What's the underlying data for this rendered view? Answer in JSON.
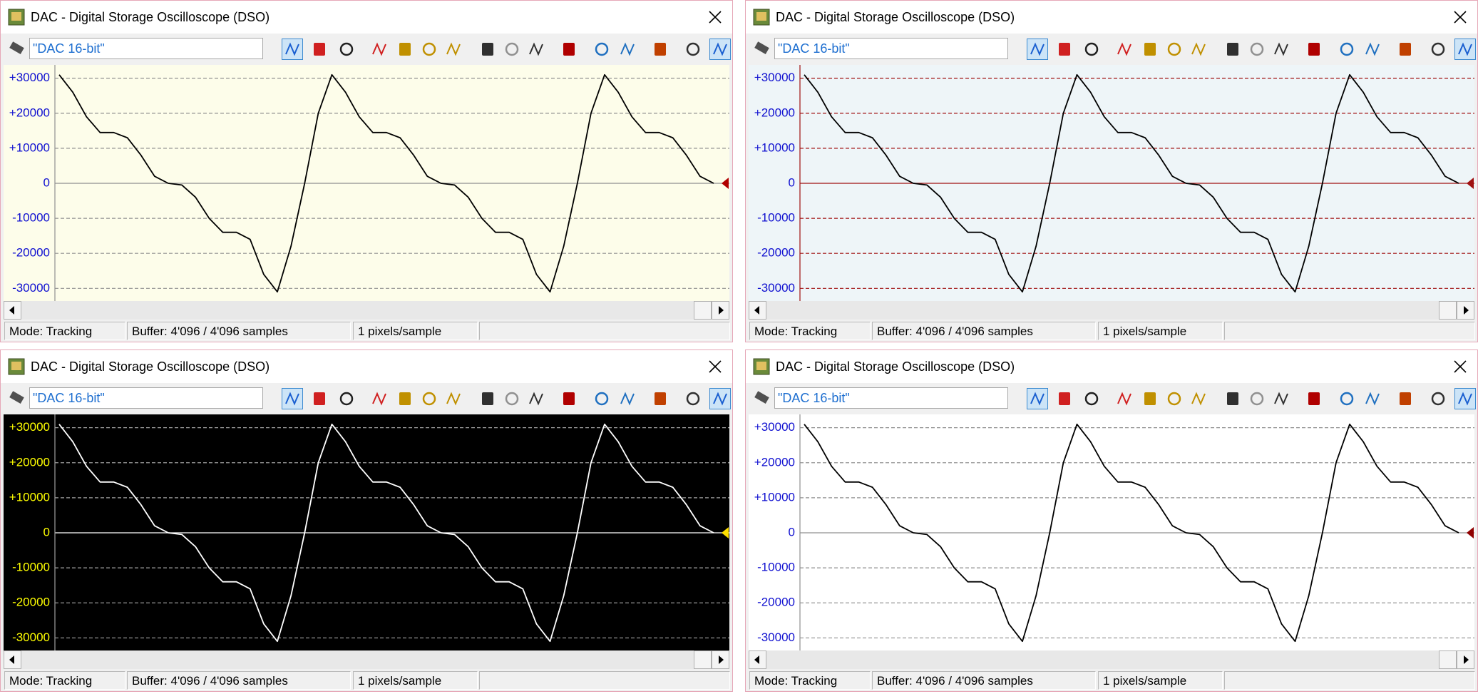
{
  "windows": [
    {
      "title": "DAC - Digital Storage Oscilloscope (DSO)",
      "input": "\"DAC 16-bit\"",
      "status": [
        "Mode: Tracking",
        "Buffer:  4'096 / 4'096 samples",
        "1 pixels/sample"
      ]
    },
    {
      "title": "DAC - Digital Storage Oscilloscope (DSO)",
      "input": "\"DAC 16-bit\"",
      "status": [
        "Mode: Tracking",
        "Buffer:  4'096 / 4'096 samples",
        "1 pixels/sample"
      ]
    },
    {
      "title": "DAC - Digital Storage Oscilloscope (DSO)",
      "input": "\"DAC 16-bit\"",
      "status": [
        "Mode: Tracking",
        "Buffer:  4'096 / 4'096 samples",
        "1 pixels/sample"
      ]
    },
    {
      "title": "DAC - Digital Storage Oscilloscope (DSO)",
      "input": "\"DAC 16-bit\"",
      "status": [
        "Mode: Tracking",
        "Buffer:  4'096 / 4'096 samples",
        "1 pixels/sample"
      ]
    }
  ],
  "chart_data": [
    {
      "type": "line",
      "background": "#fdfdea",
      "color": "#000000",
      "grid": true,
      "grid_color": "#909090",
      "zero_line_color": "#909090",
      "label_color": "#1010d0",
      "marker_color": "#b00000",
      "ylim": [
        -33600,
        33800
      ],
      "yticks": [
        {
          "value": 30000,
          "label": "+30000"
        },
        {
          "value": 20000,
          "label": "+20000"
        },
        {
          "value": 10000,
          "label": "+10000"
        },
        0,
        -10000,
        -20000,
        -30000
      ],
      "values": [
        31000,
        26000,
        19000,
        14500,
        14500,
        13000,
        8000,
        2000,
        0,
        -500,
        -4000,
        -10000,
        -14000,
        -14000,
        -16000,
        -26000,
        -31000,
        -18000,
        0,
        20000,
        31000,
        26000,
        19000,
        14500,
        14500,
        13000,
        8000,
        2000,
        0,
        -500,
        -4000,
        -10000,
        -14000,
        -14000,
        -16000,
        -26000,
        -31000,
        -18000,
        0,
        20000,
        31000,
        26000,
        19000,
        14500,
        14500,
        13000,
        8000,
        2000,
        0
      ]
    },
    {
      "type": "line",
      "background": "#eef5f8",
      "color": "#000000",
      "grid": true,
      "grid_color": "#a01010",
      "zero_line_color": "#a01010",
      "label_color": "#1010d0",
      "marker_color": "#a01010",
      "ylim": [
        -33600,
        33800
      ],
      "yticks": [
        {
          "value": 30000,
          "label": "+30000"
        },
        {
          "value": 20000,
          "label": "+20000"
        },
        {
          "value": 10000,
          "label": "+10000"
        },
        0,
        -10000,
        -20000,
        -30000
      ],
      "values": [
        31000,
        26000,
        19000,
        14500,
        14500,
        13000,
        8000,
        2000,
        0,
        -500,
        -4000,
        -10000,
        -14000,
        -14000,
        -16000,
        -26000,
        -31000,
        -18000,
        0,
        20000,
        31000,
        26000,
        19000,
        14500,
        14500,
        13000,
        8000,
        2000,
        0,
        -500,
        -4000,
        -10000,
        -14000,
        -14000,
        -16000,
        -26000,
        -31000,
        -18000,
        0,
        20000,
        31000,
        26000,
        19000,
        14500,
        14500,
        13000,
        8000,
        2000,
        0
      ]
    },
    {
      "type": "line",
      "background": "#000000",
      "color": "#ffffff",
      "grid": true,
      "grid_color": "#a0a0a0",
      "zero_line_color": "#ffffff",
      "label_color": "#ffff00",
      "marker_color": "#ffe000",
      "ylim": [
        -33600,
        33800
      ],
      "yticks": [
        {
          "value": 30000,
          "label": "+30000"
        },
        {
          "value": 20000,
          "label": "+20000"
        },
        {
          "value": 10000,
          "label": "+10000"
        },
        0,
        -10000,
        -20000,
        -30000
      ],
      "values": [
        31000,
        26000,
        19000,
        14500,
        14500,
        13000,
        8000,
        2000,
        0,
        -500,
        -4000,
        -10000,
        -14000,
        -14000,
        -16000,
        -26000,
        -31000,
        -18000,
        0,
        20000,
        31000,
        26000,
        19000,
        14500,
        14500,
        13000,
        8000,
        2000,
        0,
        -500,
        -4000,
        -10000,
        -14000,
        -14000,
        -16000,
        -26000,
        -31000,
        -18000,
        0,
        20000,
        31000,
        26000,
        19000,
        14500,
        14500,
        13000,
        8000,
        2000,
        0
      ]
    },
    {
      "type": "line",
      "background": "#ffffff",
      "color": "#000000",
      "grid": true,
      "grid_color": "#909090",
      "zero_line_color": "#909090",
      "label_color": "#1010d0",
      "marker_color": "#900000",
      "ylim": [
        -33600,
        33800
      ],
      "yticks": [
        {
          "value": 30000,
          "label": "+30000"
        },
        {
          "value": 20000,
          "label": "+20000"
        },
        {
          "value": 10000,
          "label": "+10000"
        },
        0,
        -10000,
        -20000,
        -30000
      ],
      "values": [
        31000,
        26000,
        19000,
        14500,
        14500,
        13000,
        8000,
        2000,
        0,
        -500,
        -4000,
        -10000,
        -14000,
        -14000,
        -16000,
        -26000,
        -31000,
        -18000,
        0,
        20000,
        31000,
        26000,
        19000,
        14500,
        14500,
        13000,
        8000,
        2000,
        0,
        -500,
        -4000,
        -10000,
        -14000,
        -14000,
        -16000,
        -26000,
        -31000,
        -18000,
        0,
        20000,
        31000,
        26000,
        19000,
        14500,
        14500,
        13000,
        8000,
        2000,
        0
      ]
    }
  ]
}
